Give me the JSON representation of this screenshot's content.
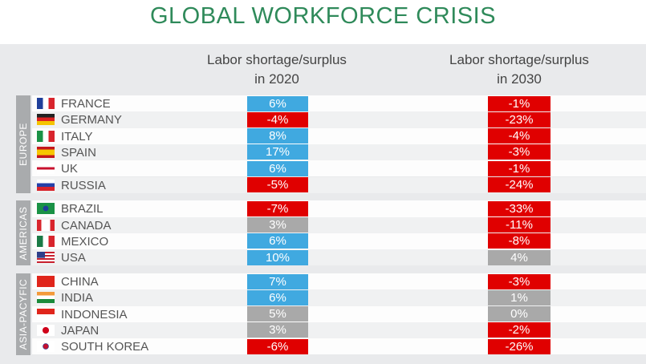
{
  "title": "GLOBAL WORKFORCE CRISIS",
  "colors": {
    "positive": "#40a9e0",
    "negative": "#e00000",
    "neutral": "#a9a9a9"
  },
  "chart_data": {
    "type": "table",
    "title": "GLOBAL WORKFORCE CRISIS",
    "columns": [
      "Labor shortage/surplus in 2020",
      "Labor shortage/surplus in 2030"
    ],
    "column_lines": [
      [
        "Labor shortage/surplus",
        "in 2020"
      ],
      [
        "Labor shortage/surplus",
        "in 2030"
      ]
    ],
    "regions": [
      {
        "name": "EUROPE",
        "rows": [
          {
            "country": "FRANCE",
            "flag": "fr",
            "v2020": "6%",
            "c2020": "positive",
            "v2030": "-1%",
            "c2030": "negative"
          },
          {
            "country": "GERMANY",
            "flag": "de",
            "v2020": "-4%",
            "c2020": "negative",
            "v2030": "-23%",
            "c2030": "negative"
          },
          {
            "country": "ITALY",
            "flag": "it",
            "v2020": "8%",
            "c2020": "positive",
            "v2030": "-4%",
            "c2030": "negative"
          },
          {
            "country": "SPAIN",
            "flag": "es",
            "v2020": "17%",
            "c2020": "positive",
            "v2030": "-3%",
            "c2030": "negative"
          },
          {
            "country": "UK",
            "flag": "uk",
            "v2020": "6%",
            "c2020": "positive",
            "v2030": "-1%",
            "c2030": "negative"
          },
          {
            "country": "RUSSIA",
            "flag": "ru",
            "v2020": "-5%",
            "c2020": "negative",
            "v2030": "-24%",
            "c2030": "negative"
          }
        ]
      },
      {
        "name": "AMERICAS",
        "rows": [
          {
            "country": "BRAZIL",
            "flag": "br",
            "v2020": "-7%",
            "c2020": "negative",
            "v2030": "-33%",
            "c2030": "negative"
          },
          {
            "country": "CANADA",
            "flag": "ca",
            "v2020": "3%",
            "c2020": "neutral",
            "v2030": "-11%",
            "c2030": "negative"
          },
          {
            "country": "MEXICO",
            "flag": "mx",
            "v2020": "6%",
            "c2020": "positive",
            "v2030": "-8%",
            "c2030": "negative"
          },
          {
            "country": "USA",
            "flag": "us",
            "v2020": "10%",
            "c2020": "positive",
            "v2030": "4%",
            "c2030": "neutral"
          }
        ]
      },
      {
        "name": "ASIA-PACYFIC",
        "rows": [
          {
            "country": "CHINA",
            "flag": "cn",
            "v2020": "7%",
            "c2020": "positive",
            "v2030": "-3%",
            "c2030": "negative"
          },
          {
            "country": "INDIA",
            "flag": "in",
            "v2020": "6%",
            "c2020": "positive",
            "v2030": "1%",
            "c2030": "neutral"
          },
          {
            "country": "INDONESIA",
            "flag": "id",
            "v2020": "5%",
            "c2020": "neutral",
            "v2030": "0%",
            "c2030": "neutral"
          },
          {
            "country": "JAPAN",
            "flag": "jp",
            "v2020": "3%",
            "c2020": "neutral",
            "v2030": "-2%",
            "c2030": "negative"
          },
          {
            "country": "SOUTH KOREA",
            "flag": "kr",
            "v2020": "-6%",
            "c2020": "negative",
            "v2030": "-26%",
            "c2030": "negative"
          }
        ]
      }
    ]
  }
}
